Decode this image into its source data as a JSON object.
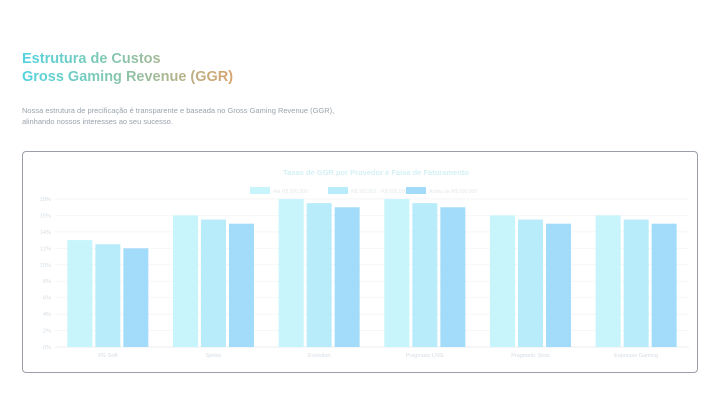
{
  "heading": {
    "line1": "Estrutura de Custos",
    "line2": "Gross Gaming Revenue (GGR)"
  },
  "intro": "Nossa estrutura de precificação é transparente e baseada no Gross Gaming Revenue (GGR), alinhando nossos interesses ao seu sucesso.",
  "colors": {
    "series1": "#c7f5fb",
    "series2": "#b9ecfa",
    "series3": "#a3dcfb",
    "heading_start": "#52d3df",
    "heading_end": "#d9a36e"
  },
  "chart_data": {
    "type": "bar",
    "title": "Taxas de GGR por Provedor e Faixa de Faturamento",
    "categories": [
      "PG Soft",
      "Spribe",
      "Evolution",
      "Pragmatic LIVE",
      "Pragmatic Slots",
      "Espresso Gaming"
    ],
    "series": [
      {
        "name": "Até R$ 300.000",
        "values": [
          13,
          16,
          18,
          18,
          16,
          16
        ]
      },
      {
        "name": "R$ 300.001 - R$ 500.000",
        "values": [
          12.5,
          15.5,
          17.5,
          17.5,
          15.5,
          15.5
        ]
      },
      {
        "name": "Acima de R$ 500.000",
        "values": [
          12,
          15,
          17,
          17,
          15,
          15
        ]
      }
    ],
    "yticks": [
      "0%",
      "2%",
      "4%",
      "6%",
      "8%",
      "10%",
      "12%",
      "14%",
      "16%",
      "18%"
    ],
    "ylim": [
      0,
      18
    ],
    "xlabel": "",
    "ylabel": "",
    "grid": true,
    "legend_position": "top-center"
  }
}
